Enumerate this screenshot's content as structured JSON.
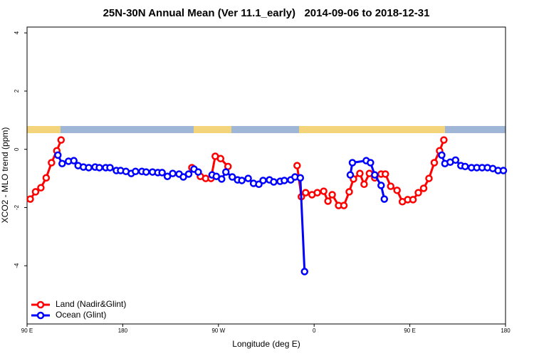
{
  "chart_data": {
    "type": "line",
    "title": "25N-30N Annual Mean (Ver 11.1_early)   2014-09-06 to 2018-12-31",
    "x_label": "Longitude (deg E)",
    "y_label": "XCO2 - MLO trend (ppm)",
    "xlim": [
      90,
      540
    ],
    "ylim": [
      -6,
      4.2
    ],
    "xticks": [
      {
        "value": 90,
        "label": "90 E"
      },
      180,
      {
        "value": 270,
        "label": "90 W"
      },
      {
        "value": 360,
        "label": "0"
      },
      {
        "value": 450,
        "label": "90 E"
      },
      {
        "value": 540,
        "label": "180"
      }
    ],
    "yticks": [
      -4,
      -2,
      0,
      2,
      4
    ],
    "legend": "bottom-left",
    "series": [
      {
        "name": "Land (Nadir&Glint)",
        "color": "#ff0000",
        "x": [
          93,
          98,
          103,
          108,
          113,
          118,
          122,
          null,
          245,
          253,
          258,
          263,
          267,
          272,
          279,
          null,
          344,
          348,
          352,
          358,
          363,
          369,
          373,
          377,
          383,
          388,
          393,
          397,
          403,
          407,
          412,
          417,
          423,
          427,
          432,
          438,
          443,
          448,
          453,
          458,
          463,
          468,
          473,
          478,
          482
        ],
        "values": [
          -1.71,
          -1.46,
          -1.32,
          -0.98,
          -0.46,
          -0.05,
          0.32,
          null,
          -0.63,
          -0.93,
          -1.0,
          -1.0,
          -0.24,
          -0.32,
          -0.59,
          null,
          -0.56,
          -1.63,
          -1.49,
          -1.56,
          -1.49,
          -1.44,
          -1.78,
          -1.56,
          -1.93,
          -1.93,
          -1.46,
          -1.02,
          -0.83,
          -1.2,
          -0.83,
          -0.98,
          -0.85,
          -0.85,
          -1.27,
          -1.41,
          -1.8,
          -1.73,
          -1.73,
          -1.49,
          -1.34,
          -1.0,
          -0.46,
          -0.05,
          0.32
        ]
      },
      {
        "name": "Ocean (Glint)",
        "color": "#0000ff",
        "x": [
          119,
          123,
          129,
          134,
          138,
          143,
          148,
          154,
          158,
          164,
          168,
          174,
          178,
          183,
          188,
          192,
          198,
          202,
          208,
          213,
          217,
          222,
          227,
          233,
          237,
          242,
          247,
          251,
          null,
          264,
          268,
          273,
          277,
          283,
          288,
          292,
          298,
          303,
          308,
          312,
          318,
          322,
          328,
          332,
          338,
          342,
          347,
          351,
          null,
          394,
          396,
          409,
          413,
          417,
          423,
          426,
          null,
          480,
          483,
          488,
          493,
          498,
          502,
          508,
          513,
          518,
          523,
          528,
          533,
          538
        ],
        "values": [
          -0.2,
          -0.49,
          -0.41,
          -0.39,
          -0.56,
          -0.61,
          -0.63,
          -0.61,
          -0.63,
          -0.63,
          -0.63,
          -0.73,
          -0.73,
          -0.76,
          -0.83,
          -0.76,
          -0.76,
          -0.78,
          -0.78,
          -0.8,
          -0.8,
          -0.93,
          -0.83,
          -0.85,
          -0.95,
          -0.85,
          -0.68,
          -0.78,
          null,
          -0.88,
          -0.93,
          -1.02,
          -0.78,
          -0.95,
          -1.05,
          -1.07,
          -1.0,
          -1.17,
          -1.2,
          -1.07,
          -1.05,
          -1.12,
          -1.1,
          -1.07,
          -1.05,
          -0.95,
          -0.98,
          -4.2,
          null,
          -0.88,
          -0.46,
          -0.39,
          -0.46,
          -0.88,
          -1.24,
          -1.71,
          null,
          -0.2,
          -0.49,
          -0.44,
          -0.37,
          -0.56,
          -0.59,
          -0.63,
          -0.63,
          -0.63,
          -0.63,
          -0.66,
          -0.73,
          -0.73
        ]
      }
    ]
  }
}
